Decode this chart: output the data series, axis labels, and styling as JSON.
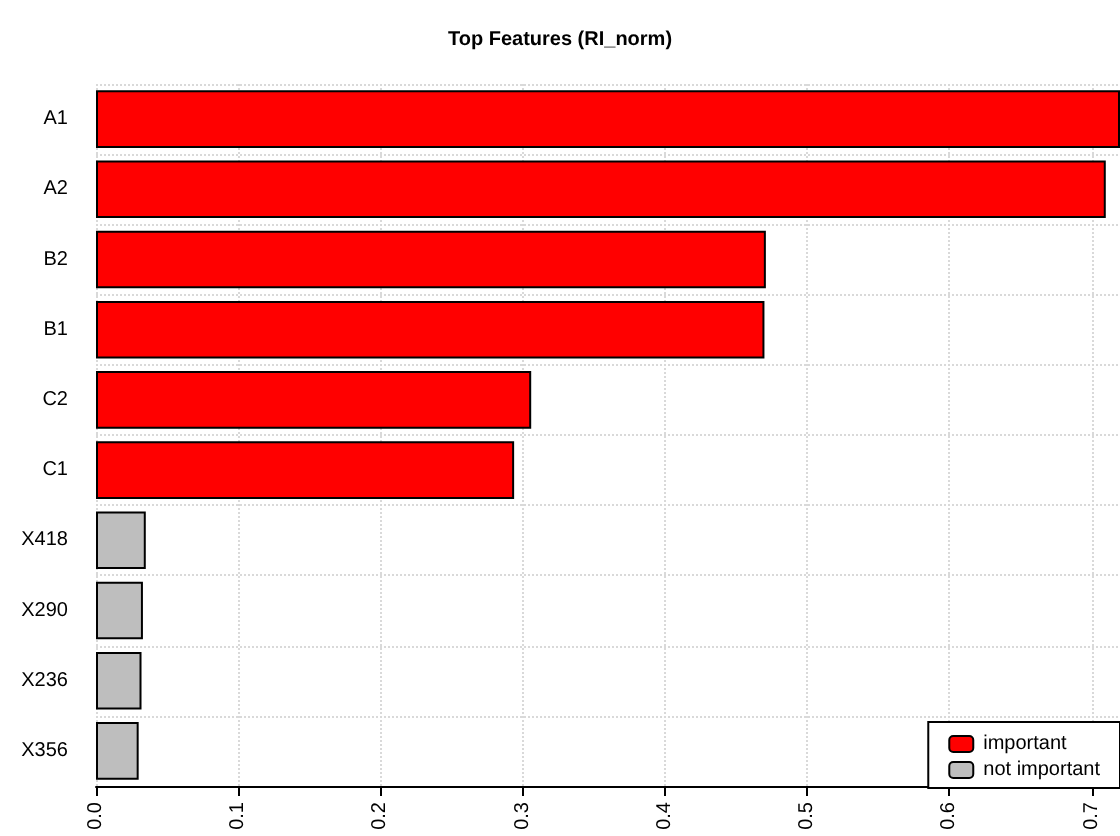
{
  "chart_data": {
    "type": "bar",
    "orientation": "horizontal",
    "title": "Top Features (RI_norm)",
    "categories": [
      "A1",
      "A2",
      "B2",
      "B1",
      "C2",
      "C1",
      "X418",
      "X290",
      "X236",
      "X356"
    ],
    "series": [
      {
        "name": "important",
        "color": "#ff0000",
        "values": [
          0.72,
          0.71,
          0.471,
          0.47,
          0.306,
          0.294,
          null,
          null,
          null,
          null
        ]
      },
      {
        "name": "not important",
        "color": "#bebebe",
        "values": [
          null,
          null,
          null,
          null,
          null,
          null,
          0.035,
          0.033,
          0.032,
          0.03
        ]
      }
    ],
    "xlim": [
      0,
      0.72
    ],
    "xticks": [
      {
        "value": 0,
        "label": "0.0"
      },
      0.1,
      0.2,
      0.3,
      0.4,
      0.5,
      0.6,
      0.7
    ],
    "grid": true,
    "legend": "bottom right"
  }
}
